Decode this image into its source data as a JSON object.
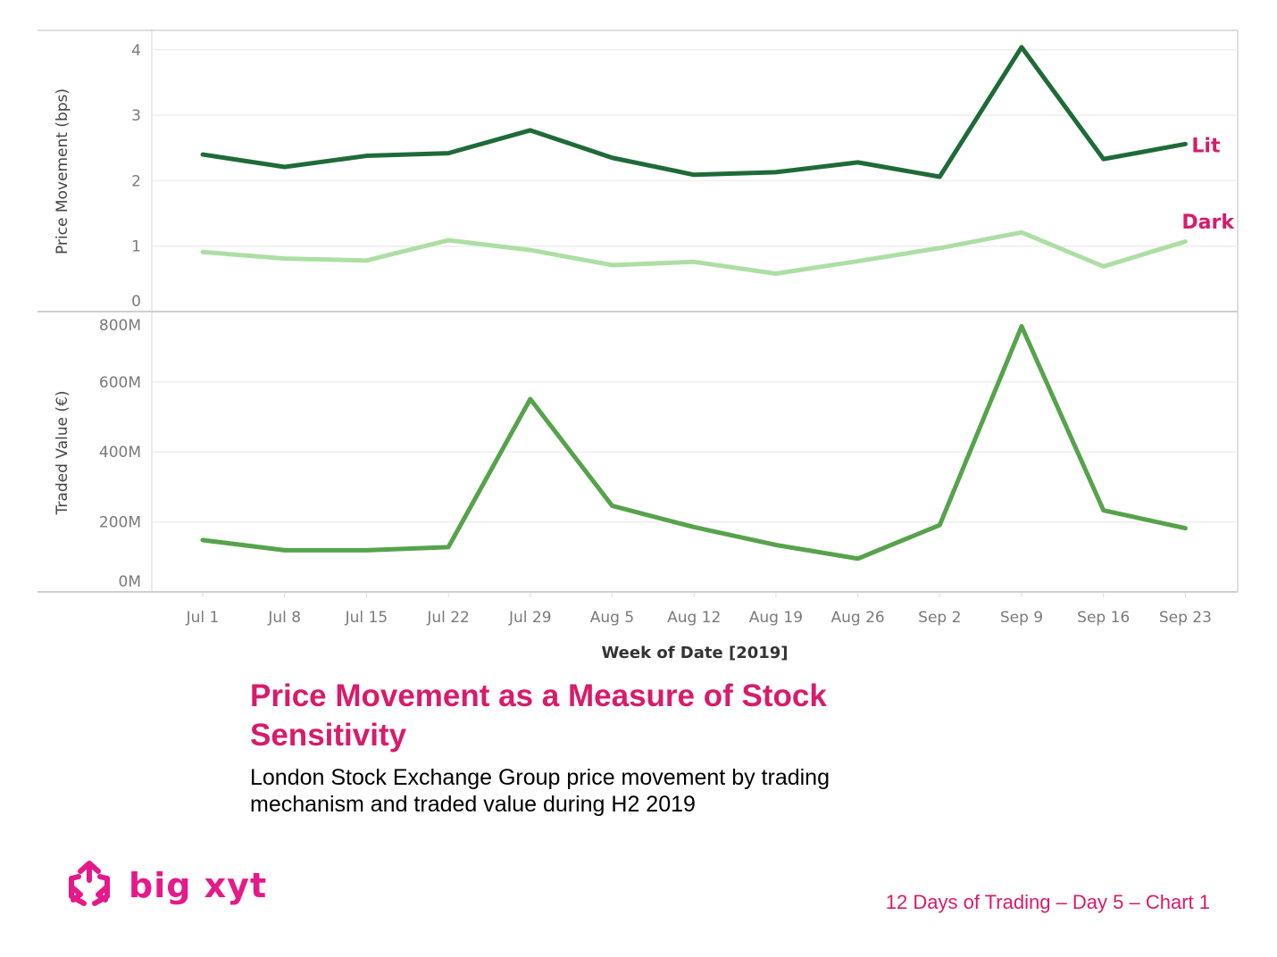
{
  "chart_data": [
    {
      "type": "line",
      "panel": "top",
      "ylabel": "Price Movement (bps)",
      "ylim": [
        0,
        4.3
      ],
      "yticks": [
        0,
        1,
        2,
        3,
        4
      ],
      "ytick_labels": [
        "0",
        "1",
        "2",
        "3",
        "4"
      ],
      "grid": true,
      "series": [
        {
          "name": "Lit",
          "color": "#1e6b38",
          "values": [
            2.4,
            2.21,
            2.38,
            2.42,
            2.77,
            2.35,
            2.09,
            2.13,
            2.28,
            2.06,
            4.04,
            2.33,
            2.56
          ]
        },
        {
          "name": "Dark",
          "color": "#addfa4",
          "values": [
            0.91,
            0.81,
            0.78,
            1.09,
            0.94,
            0.71,
            0.76,
            0.58,
            0.77,
            0.97,
            1.21,
            0.69,
            1.07
          ]
        }
      ],
      "series_label_color": "#d81b6a"
    },
    {
      "type": "line",
      "panel": "bottom",
      "ylabel": "Traded Value (€)",
      "ylim": [
        0,
        800
      ],
      "yunit": "M",
      "yticks": [
        0,
        200,
        400,
        600,
        800
      ],
      "ytick_labels": [
        "0M",
        "200M",
        "400M",
        "600M",
        "800M"
      ],
      "grid": true,
      "series": [
        {
          "name": "Traded Value",
          "color": "#56a34b",
          "values": [
            148,
            119,
            119,
            128,
            551,
            246,
            185,
            134,
            95,
            191,
            759,
            233,
            182
          ]
        }
      ]
    }
  ],
  "x_axis": {
    "title": "Week of Date [2019]",
    "categories": [
      "Jul 1",
      "Jul 8",
      "Jul 15",
      "Jul 22",
      "Jul 29",
      "Aug 5",
      "Aug 12",
      "Aug 19",
      "Aug 26",
      "Sep 2",
      "Sep 9",
      "Sep 16",
      "Sep 23"
    ]
  },
  "title": "Price Movement as a Measure of Stock Sensitivity",
  "subtitle": "London Stock Exchange Group price movement by trading mechanism and traded value during H2 2019",
  "logo": {
    "text": "big xyt",
    "icon": "cube-arrows-icon",
    "color": "#e5198a"
  },
  "footer": "12 Days of Trading – Day 5 – Chart 1"
}
